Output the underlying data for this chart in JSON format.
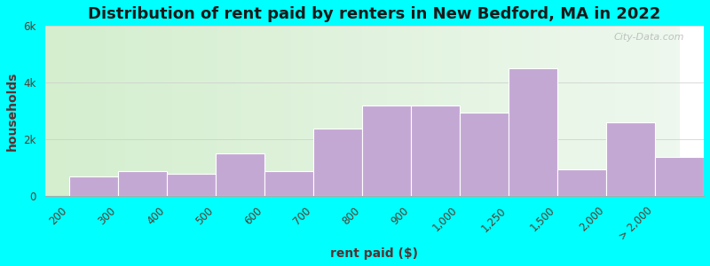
{
  "categories": [
    "200",
    "300",
    "400",
    "500",
    "600",
    "700",
    "800",
    "900",
    "1,000",
    "1,250",
    "1,500",
    "2,000",
    "> 2,000"
  ],
  "values": [
    700,
    900,
    800,
    1500,
    900,
    2400,
    3200,
    3200,
    2950,
    4500,
    950,
    2600,
    1400
  ],
  "bar_color": "#c4a8d4",
  "bar_edge_color": "#ffffff",
  "title": "Distribution of rent paid by renters in New Bedford, MA in 2022",
  "xlabel": "rent paid ($)",
  "ylabel": "households",
  "ylim": [
    0,
    6000
  ],
  "yticks": [
    0,
    2000,
    4000,
    6000
  ],
  "ytick_labels": [
    "0",
    "2k",
    "4k",
    "6k"
  ],
  "title_fontsize": 13,
  "axis_label_fontsize": 10,
  "tick_fontsize": 8.5,
  "bg_color_left": "#d4eece",
  "bg_color_right": "#eef8ee",
  "outer_bg": "#00ffff",
  "watermark": "City-Data.com"
}
